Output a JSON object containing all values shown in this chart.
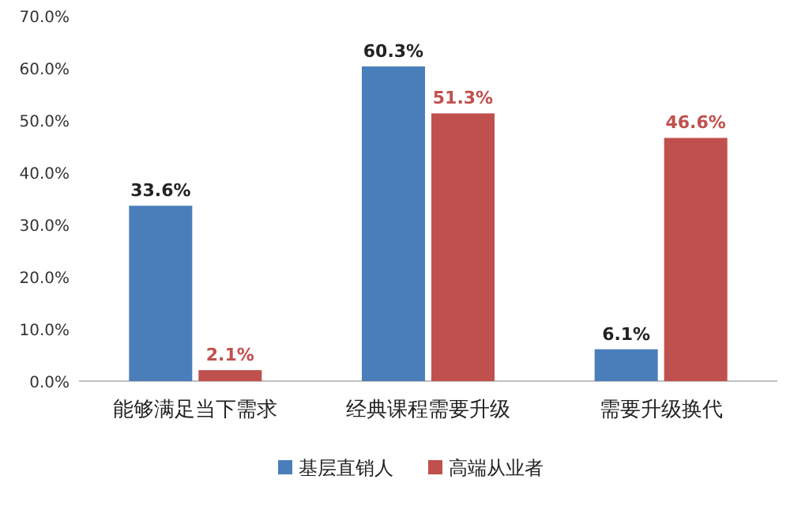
{
  "chart_data": {
    "type": "bar",
    "categories": [
      "能够满足当下需求",
      "经典课程需要升级",
      "需要升级换代"
    ],
    "series": [
      {
        "name": "基层直销人",
        "color": "#4a7ebb",
        "values": [
          33.6,
          60.3,
          6.1
        ],
        "value_labels": [
          "33.6%",
          "60.3%",
          "6.1%"
        ]
      },
      {
        "name": "高端从业者",
        "color": "#c0504d",
        "values": [
          2.1,
          51.3,
          46.6
        ],
        "value_labels": [
          "2.1%",
          "51.3%",
          "46.6%"
        ]
      }
    ],
    "ylim": [
      0,
      70
    ],
    "yticks": [
      {
        "value": 0,
        "label": "0.0%"
      },
      {
        "value": 10,
        "label": "10.0%"
      },
      {
        "value": 20,
        "label": "20.0%"
      },
      {
        "value": 30,
        "label": "30.0%"
      },
      {
        "value": 40,
        "label": "40.0%"
      },
      {
        "value": 50,
        "label": "50.0%"
      },
      {
        "value": 60,
        "label": "60.0%"
      },
      {
        "value": 70,
        "label": "70.0%"
      }
    ],
    "grid": false,
    "legend": "bottom"
  }
}
